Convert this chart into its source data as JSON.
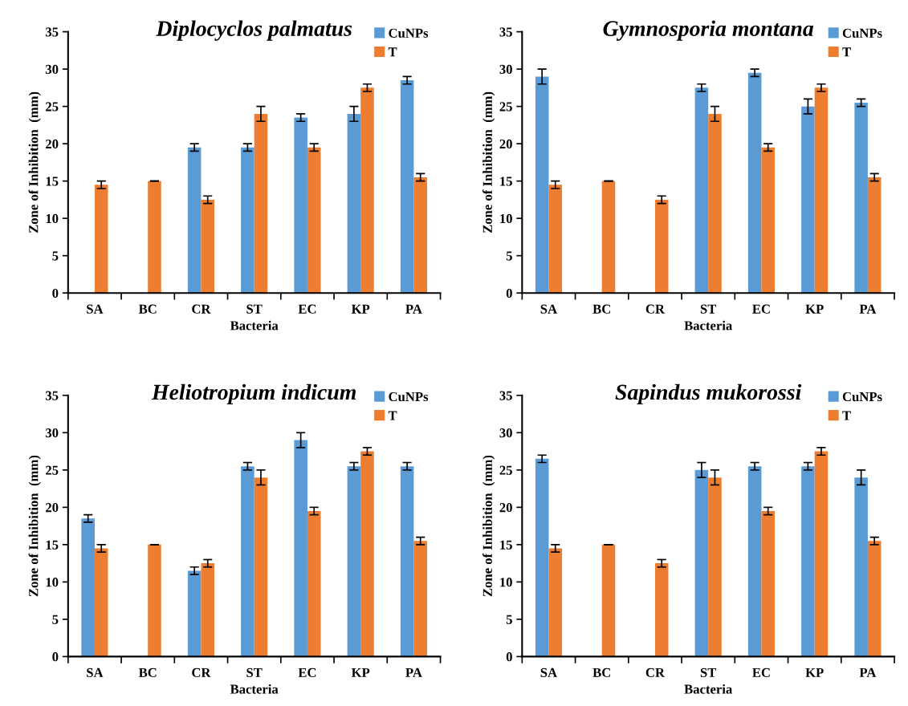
{
  "chart_data": [
    {
      "type": "bar",
      "title": "Diplocyclos palmatus",
      "xlabel": "Bacteria",
      "ylabel": "Zone of Inhibition  (mm)",
      "categories": [
        "SA",
        "BC",
        "CR",
        "ST",
        "EC",
        "KP",
        "PA"
      ],
      "ylim": [
        0,
        35
      ],
      "yticks": [
        0,
        5,
        10,
        15,
        20,
        25,
        30,
        35
      ],
      "grid": false,
      "legend": "top right",
      "series": [
        {
          "name": "CuNPs",
          "color": "#5b9bd5",
          "values": [
            null,
            null,
            19.5,
            19.5,
            23.5,
            24,
            28.5
          ],
          "errors": [
            null,
            null,
            0.5,
            0.5,
            0.5,
            1,
            0.5
          ]
        },
        {
          "name": "T",
          "color": "#ed7d31",
          "values": [
            14.5,
            15,
            12.5,
            24,
            19.5,
            27.5,
            15.5
          ],
          "errors": [
            0.5,
            0,
            0.5,
            1,
            0.5,
            0.5,
            0.5
          ]
        }
      ]
    },
    {
      "type": "bar",
      "title": "Gymnosporia montana",
      "xlabel": "Bacteria",
      "ylabel": "Zone of Inhibition  (mm)",
      "categories": [
        "SA",
        "BC",
        "CR",
        "ST",
        "EC",
        "KP",
        "PA"
      ],
      "ylim": [
        0,
        35
      ],
      "yticks": [
        0,
        5,
        10,
        15,
        20,
        25,
        30,
        35
      ],
      "grid": false,
      "legend": "top right",
      "series": [
        {
          "name": "CuNPs",
          "color": "#5b9bd5",
          "values": [
            29,
            null,
            null,
            27.5,
            29.5,
            25,
            25.5
          ],
          "errors": [
            1,
            null,
            null,
            0.5,
            0.5,
            1,
            0.5
          ]
        },
        {
          "name": "T",
          "color": "#ed7d31",
          "values": [
            14.5,
            15,
            12.5,
            24,
            19.5,
            27.5,
            15.5
          ],
          "errors": [
            0.5,
            0,
            0.5,
            1,
            0.5,
            0.5,
            0.5
          ]
        }
      ]
    },
    {
      "type": "bar",
      "title": "Heliotropium indicum",
      "xlabel": "Bacteria",
      "ylabel": "Zone of Inhibition  (mm)",
      "categories": [
        "SA",
        "BC",
        "CR",
        "ST",
        "EC",
        "KP",
        "PA"
      ],
      "ylim": [
        0,
        35
      ],
      "yticks": [
        0,
        5,
        10,
        15,
        20,
        25,
        30,
        35
      ],
      "grid": false,
      "legend": "top right",
      "series": [
        {
          "name": "CuNPs",
          "color": "#5b9bd5",
          "values": [
            18.5,
            null,
            11.5,
            25.5,
            29,
            25.5,
            25.5
          ],
          "errors": [
            0.5,
            null,
            0.5,
            0.5,
            1,
            0.5,
            0.5
          ]
        },
        {
          "name": "T",
          "color": "#ed7d31",
          "values": [
            14.5,
            15,
            12.5,
            24,
            19.5,
            27.5,
            15.5
          ],
          "errors": [
            0.5,
            0,
            0.5,
            1,
            0.5,
            0.5,
            0.5
          ]
        }
      ]
    },
    {
      "type": "bar",
      "title": "Sapindus mukorossi",
      "xlabel": "Bacteria",
      "ylabel": "Zone of Inhibition  (mm)",
      "categories": [
        "SA",
        "BC",
        "CR",
        "ST",
        "EC",
        "KP",
        "PA"
      ],
      "ylim": [
        0,
        35
      ],
      "yticks": [
        0,
        5,
        10,
        15,
        20,
        25,
        30,
        35
      ],
      "grid": false,
      "legend": "top right",
      "series": [
        {
          "name": "CuNPs",
          "color": "#5b9bd5",
          "values": [
            26.5,
            null,
            null,
            25,
            25.5,
            25.5,
            24
          ],
          "errors": [
            0.5,
            null,
            null,
            1,
            0.5,
            0.5,
            1
          ]
        },
        {
          "name": "T",
          "color": "#ed7d31",
          "values": [
            14.5,
            15,
            12.5,
            24,
            19.5,
            27.5,
            15.5
          ],
          "errors": [
            0.5,
            0,
            0.5,
            1,
            0.5,
            0.5,
            0.5
          ]
        }
      ]
    }
  ]
}
